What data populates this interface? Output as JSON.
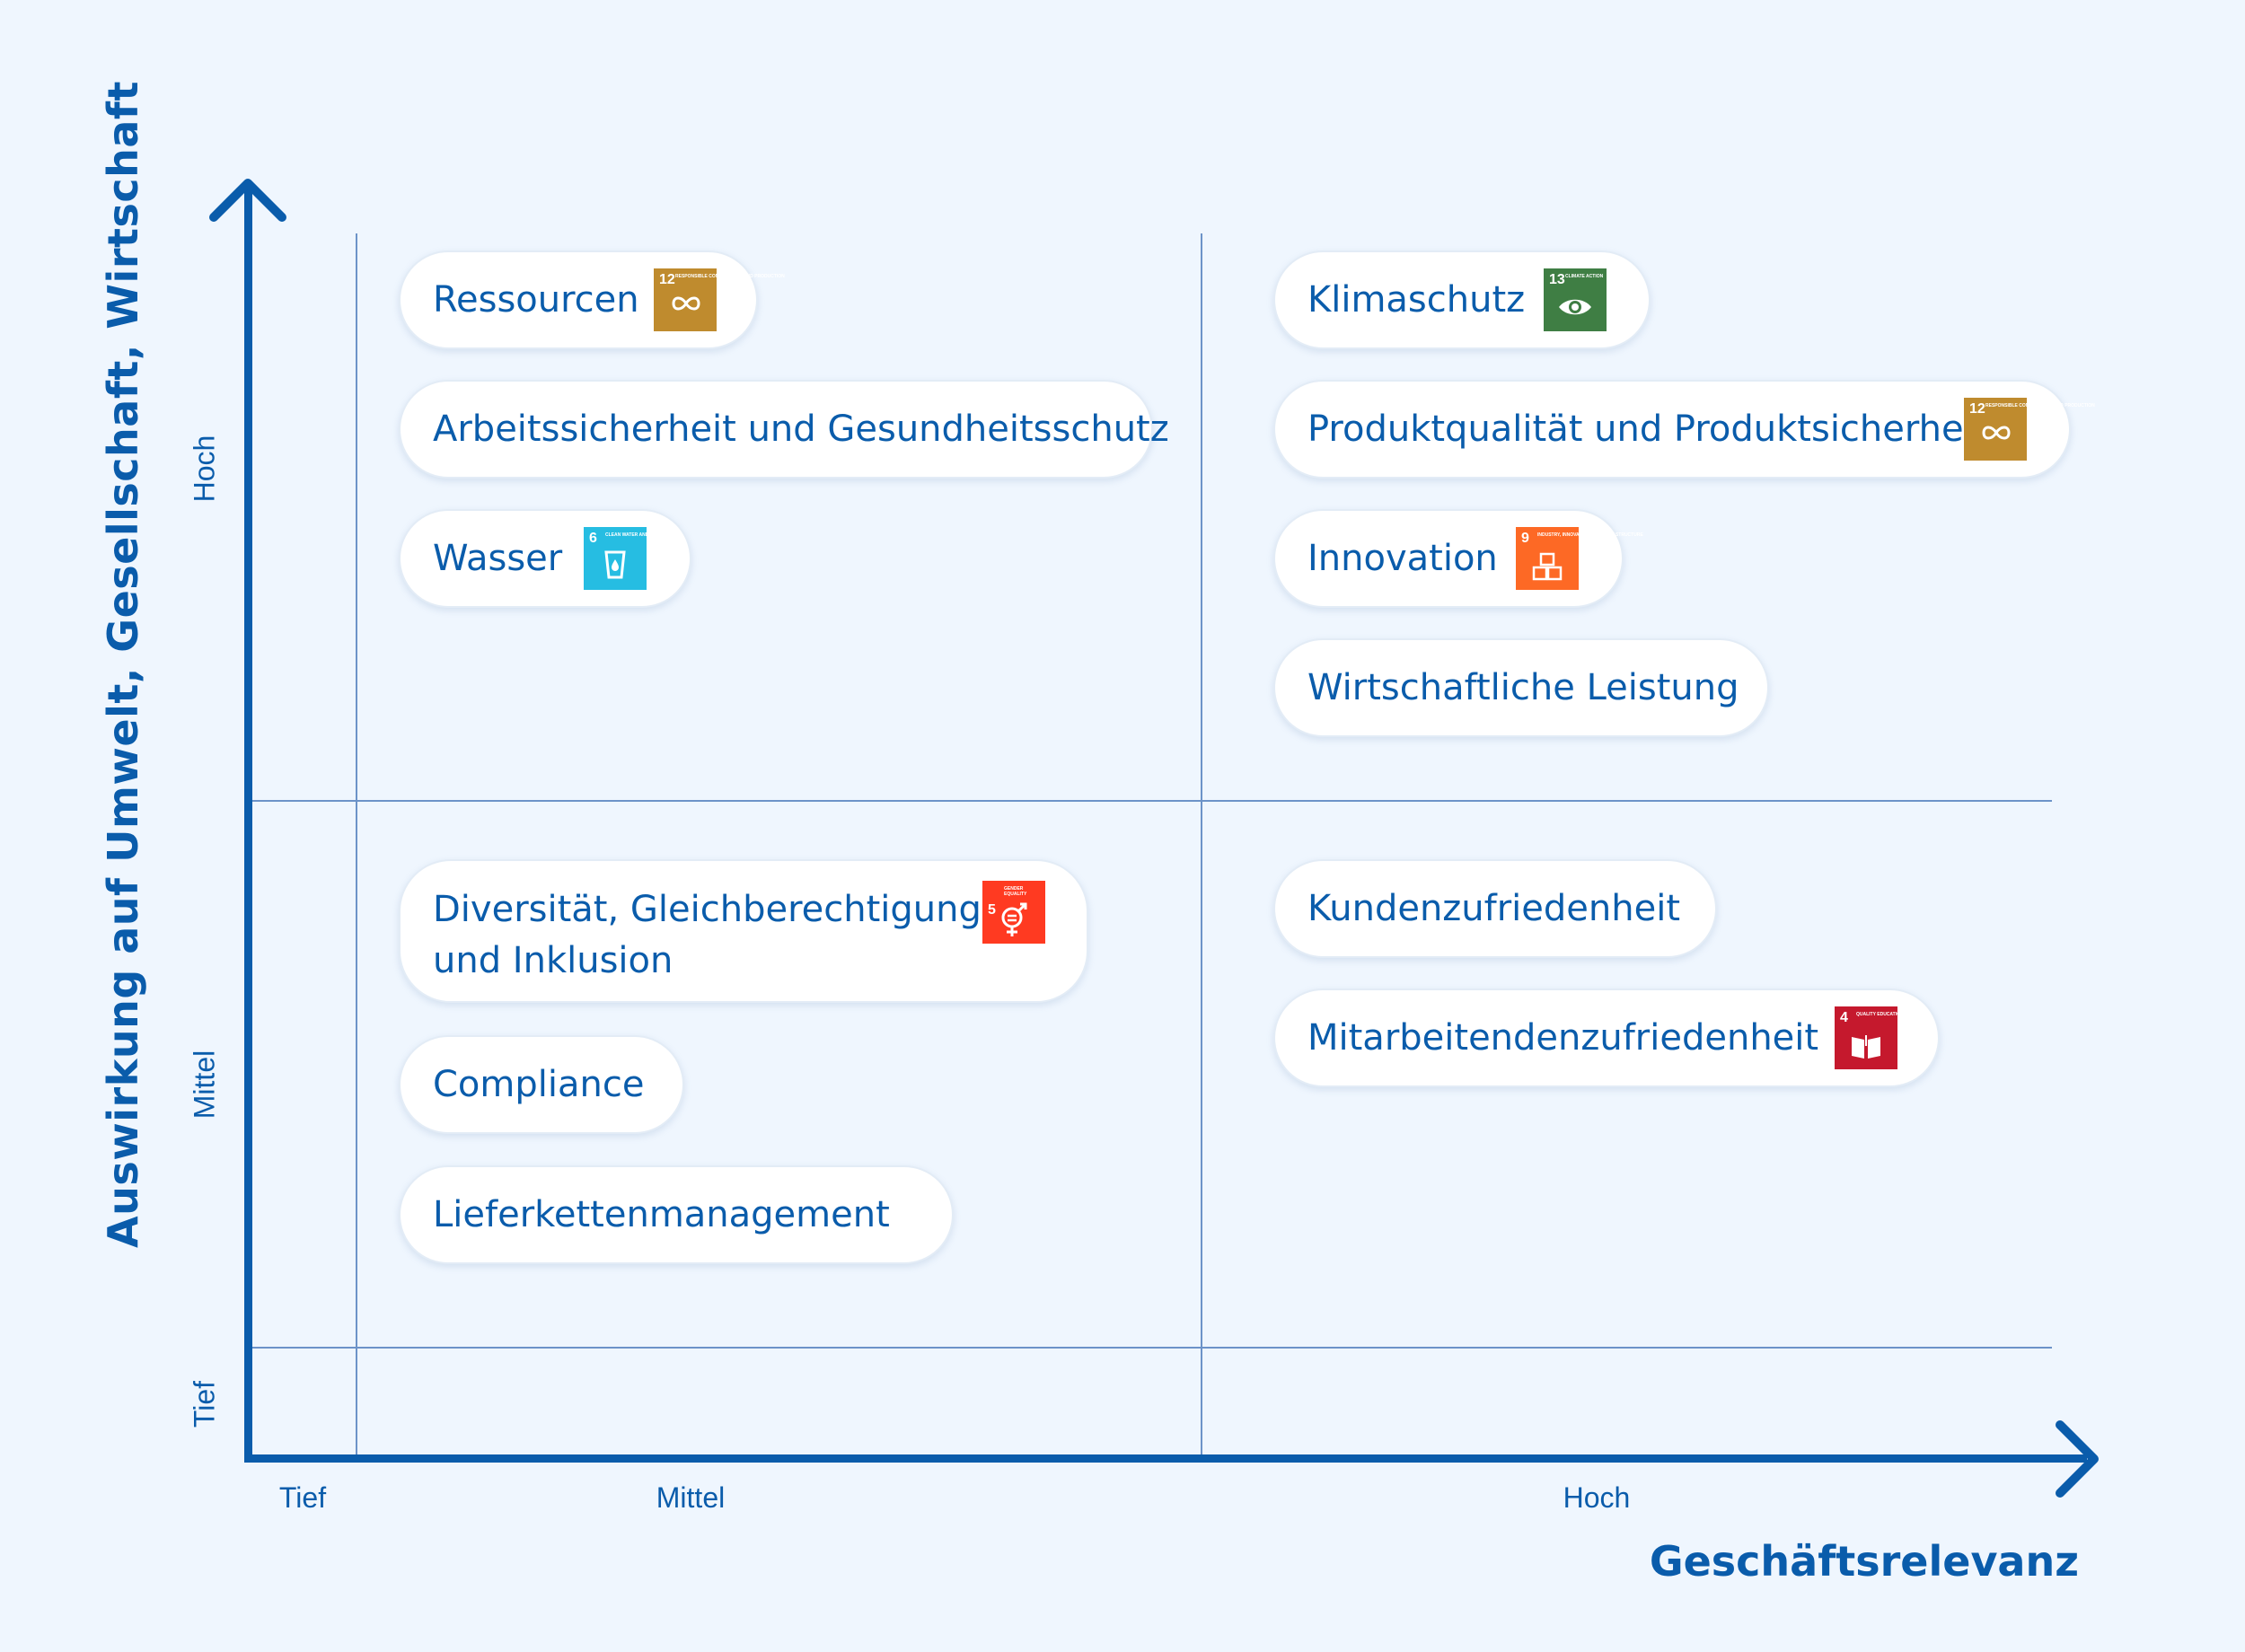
{
  "axes": {
    "y_title": "Auswirkung auf Umwelt, Gesellschaft, Wirtschaft",
    "x_title": "Geschäftsrelevanz",
    "y_ticks": [
      "Hoch",
      "Mittel",
      "Tief"
    ],
    "x_ticks": [
      "Tief",
      "Mittel",
      "Hoch"
    ]
  },
  "colors": {
    "background": "#EFF6FE",
    "axis": "#0A5CAB",
    "grid": "#6C93C8",
    "sdg4": "#C5192D",
    "sdg5": "#FF3A21",
    "sdg6": "#26BDE2",
    "sdg9": "#FD6925",
    "sdg12": "#BF8B2E",
    "sdg13": "#3F7E44"
  },
  "topics": {
    "ressourcen": {
      "label": "Ressourcen",
      "sdg_number": "12",
      "sdg_title": "RESPONSIBLE CONSUMPTION AND PRODUCTION",
      "sdg_icon": "infinity-icon"
    },
    "arbeitssicherheit": {
      "label": "Arbeitssicherheit und Gesundheitsschutz"
    },
    "wasser": {
      "label": "Wasser",
      "sdg_number": "6",
      "sdg_title": "CLEAN WATER AND SANITATION",
      "sdg_icon": "water-glass-icon"
    },
    "klimaschutz": {
      "label": "Klimaschutz",
      "sdg_number": "13",
      "sdg_title": "CLIMATE ACTION",
      "sdg_icon": "eye-globe-icon"
    },
    "produktqualitaet": {
      "label": "Produktqualität und Produktsicherheit",
      "sdg_number": "12",
      "sdg_title": "RESPONSIBLE CONSUMPTION AND PRODUCTION",
      "sdg_icon": "infinity-icon"
    },
    "innovation": {
      "label": "Innovation",
      "sdg_number": "9",
      "sdg_title": "INDUSTRY, INNOVATION AND INFRASTRUCTURE",
      "sdg_icon": "cubes-icon"
    },
    "wirtschaftliche_leistung": {
      "label": "Wirtschaftliche Leistung"
    },
    "diversitaet": {
      "label_line1": "Diversität, Gleichberechtigung",
      "label_line2": "und Inklusion",
      "sdg_number": "5",
      "sdg_title": "GENDER EQUALITY",
      "sdg_icon": "gender-equality-icon"
    },
    "compliance": {
      "label": "Compliance"
    },
    "lieferketten": {
      "label": "Lieferkettenmanagement"
    },
    "kundenzufriedenheit": {
      "label": "Kundenzufriedenheit"
    },
    "mitarbeitendenzufriedenheit": {
      "label": "Mitarbeitendenzufriedenheit",
      "sdg_number": "4",
      "sdg_title": "QUALITY EDUCATION",
      "sdg_icon": "open-book-icon"
    }
  }
}
